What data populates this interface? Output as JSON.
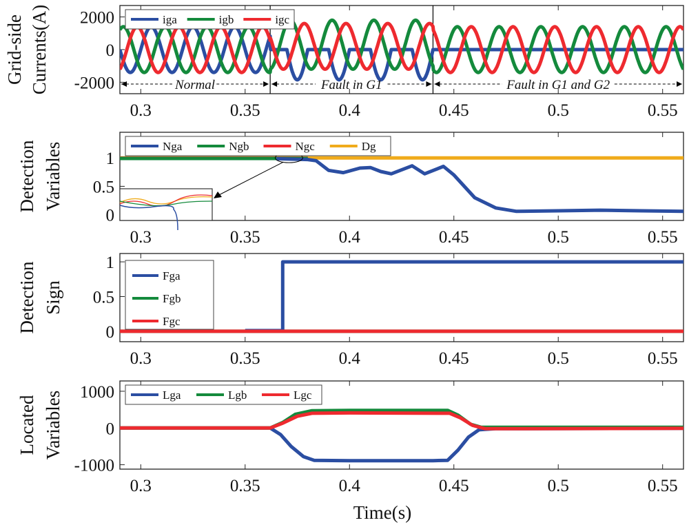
{
  "colors": {
    "blue": "#2b4ea2",
    "green": "#148a3c",
    "red": "#ee2a2f",
    "orange": "#f0ab1b",
    "axis": "#222222"
  },
  "chart_data": [
    {
      "type": "line",
      "ylabel": [
        "Grid-side",
        "Currents(A)"
      ],
      "xlim": [
        0.29,
        0.56
      ],
      "ylim": [
        -2700,
        2700
      ],
      "xticks": [
        0.3,
        0.35,
        0.4,
        0.45,
        0.5,
        0.55
      ],
      "xticklabels": [
        "0.3",
        "0.35",
        "0.4",
        "0.45",
        "0.5",
        "0.55"
      ],
      "yticks": [
        2000,
        0,
        -2000
      ],
      "yticklabels": [
        "2000",
        "0",
        "-2000"
      ],
      "legend": {
        "placement": "top-left",
        "entries": [
          "iga",
          "igb",
          "igc"
        ]
      },
      "series": [
        {
          "name": "iga",
          "color": "blue",
          "form": "sinusoid",
          "freq_hz": 50,
          "phase_deg": 0,
          "segments": [
            {
              "t0": 0.29,
              "t1": 0.362,
              "amplitude": 1400,
              "offset": 0,
              "clip": null
            },
            {
              "t0": 0.362,
              "t1": 0.44,
              "amplitude": 1850,
              "offset": 0,
              "clip": [
                -2700,
                0
              ]
            },
            {
              "t0": 0.44,
              "t1": 0.56,
              "amplitude": 0,
              "offset": 0,
              "clip": null
            }
          ]
        },
        {
          "name": "igb",
          "color": "green",
          "form": "sinusoid",
          "freq_hz": 50,
          "phase_deg": -120,
          "segments": [
            {
              "t0": 0.29,
              "t1": 0.362,
              "amplitude": 1400,
              "offset": 0,
              "clip": null
            },
            {
              "t0": 0.362,
              "t1": 0.44,
              "amplitude": 1500,
              "offset": 300,
              "clip": null
            },
            {
              "t0": 0.44,
              "t1": 0.56,
              "amplitude": 1400,
              "offset": 0,
              "clip": null
            }
          ]
        },
        {
          "name": "igc",
          "color": "red",
          "form": "sinusoid",
          "freq_hz": 50,
          "phase_deg": 120,
          "segments": [
            {
              "t0": 0.29,
              "t1": 0.362,
              "amplitude": 1400,
              "offset": 0,
              "clip": null
            },
            {
              "t0": 0.362,
              "t1": 0.44,
              "amplitude": 1400,
              "offset": 200,
              "clip": null
            },
            {
              "t0": 0.44,
              "t1": 0.56,
              "amplitude": 1400,
              "offset": 0,
              "clip": null
            }
          ]
        }
      ],
      "vlines": [
        0.362,
        0.44
      ],
      "annotations": [
        {
          "text": "Normal",
          "from": 0.29,
          "to": 0.362
        },
        {
          "text": "Fault in G1",
          "from": 0.362,
          "to": 0.44
        },
        {
          "text": "Fault in G1 and G2",
          "from": 0.44,
          "to": 0.56
        }
      ]
    },
    {
      "type": "line",
      "ylabel": [
        "Detection",
        "Variables"
      ],
      "xlim": [
        0.29,
        0.56
      ],
      "ylim": [
        -0.1,
        1.45
      ],
      "xticks": [
        0.3,
        0.35,
        0.4,
        0.45,
        0.5,
        0.55
      ],
      "xticklabels": [
        "0.3",
        "0.35",
        "0.4",
        "0.45",
        "0.5",
        "0.55"
      ],
      "yticks": [
        1,
        0.5,
        0
      ],
      "yticklabels": [
        "1",
        "0.5",
        "0"
      ],
      "legend": {
        "placement": "top-left",
        "entries": [
          "Nga",
          "Ngb",
          "Ngc",
          "Dg"
        ]
      },
      "series": [
        {
          "name": "Dg",
          "color": "orange",
          "points": [
            [
              0.29,
              1.0
            ],
            [
              0.56,
              1.0
            ]
          ]
        },
        {
          "name": "Ngc",
          "color": "red",
          "points": [
            [
              0.29,
              0.995
            ],
            [
              0.38,
              0.995
            ]
          ]
        },
        {
          "name": "Ngb",
          "color": "green",
          "points": [
            [
              0.29,
              0.99
            ],
            [
              0.38,
              0.99
            ]
          ]
        },
        {
          "name": "Nga",
          "color": "blue",
          "points": [
            [
              0.365,
              0.985
            ],
            [
              0.38,
              0.97
            ],
            [
              0.384,
              0.95
            ],
            [
              0.39,
              0.78
            ],
            [
              0.397,
              0.74
            ],
            [
              0.405,
              0.82
            ],
            [
              0.41,
              0.83
            ],
            [
              0.415,
              0.76
            ],
            [
              0.42,
              0.72
            ],
            [
              0.43,
              0.86
            ],
            [
              0.436,
              0.72
            ],
            [
              0.445,
              0.85
            ],
            [
              0.45,
              0.7
            ],
            [
              0.46,
              0.3
            ],
            [
              0.47,
              0.12
            ],
            [
              0.48,
              0.06
            ],
            [
              0.5,
              0.07
            ],
            [
              0.52,
              0.08
            ],
            [
              0.54,
              0.07
            ],
            [
              0.56,
              0.06
            ]
          ]
        }
      ],
      "inset": {
        "type": "zoom",
        "region_x": [
          0.365,
          0.375
        ],
        "region_y": [
          0.97,
          1.02
        ]
      }
    },
    {
      "type": "line",
      "ylabel": [
        "Detection",
        "Sign"
      ],
      "xlim": [
        0.29,
        0.56
      ],
      "ylim": [
        -0.15,
        1.12
      ],
      "xticks": [
        0.3,
        0.35,
        0.4,
        0.45,
        0.5,
        0.55
      ],
      "xticklabels": [
        "0.3",
        "0.35",
        "0.4",
        "0.45",
        "0.5",
        "0.55"
      ],
      "yticks": [
        1,
        0.5,
        0
      ],
      "yticklabels": [
        "1",
        "0.5",
        "0"
      ],
      "legend": {
        "placement": "top-left",
        "entries": [
          "Fga",
          "Fgb",
          "Fgc"
        ]
      },
      "series": [
        {
          "name": "Fgb",
          "color": "green",
          "points": [
            [
              0.29,
              0
            ],
            [
              0.56,
              0
            ]
          ]
        },
        {
          "name": "Fga",
          "color": "blue",
          "points": [
            [
              0.35,
              0.01
            ],
            [
              0.368,
              0.01
            ],
            [
              0.368,
              1
            ],
            [
              0.56,
              1
            ]
          ]
        },
        {
          "name": "Fgc",
          "color": "red",
          "points": [
            [
              0.29,
              0
            ],
            [
              0.56,
              0
            ]
          ]
        }
      ]
    },
    {
      "type": "line",
      "ylabel": [
        "Located",
        "Variables"
      ],
      "xlim": [
        0.29,
        0.56
      ],
      "ylim": [
        -1120,
        1280
      ],
      "xticks": [
        0.3,
        0.35,
        0.4,
        0.45,
        0.5,
        0.55
      ],
      "xticklabels": [
        "0.3",
        "0.35",
        "0.4",
        "0.45",
        "0.5",
        "0.55"
      ],
      "yticks": [
        1000,
        0,
        -1000
      ],
      "yticklabels": [
        "1000",
        "0",
        "-1000"
      ],
      "legend": {
        "placement": "top-left",
        "entries": [
          "Lga",
          "Lgb",
          "Lgc"
        ]
      },
      "xlabel": "Time(s)",
      "series": [
        {
          "name": "Lga",
          "color": "blue",
          "points": [
            [
              0.29,
              0
            ],
            [
              0.362,
              0
            ],
            [
              0.367,
              -180
            ],
            [
              0.372,
              -500
            ],
            [
              0.378,
              -780
            ],
            [
              0.383,
              -880
            ],
            [
              0.4,
              -890
            ],
            [
              0.44,
              -890
            ],
            [
              0.447,
              -880
            ],
            [
              0.452,
              -600
            ],
            [
              0.457,
              -250
            ],
            [
              0.462,
              -50
            ],
            [
              0.47,
              -20
            ],
            [
              0.56,
              -10
            ]
          ]
        },
        {
          "name": "Lgb",
          "color": "green",
          "points": [
            [
              0.29,
              0
            ],
            [
              0.362,
              0
            ],
            [
              0.368,
              150
            ],
            [
              0.374,
              370
            ],
            [
              0.382,
              470
            ],
            [
              0.4,
              480
            ],
            [
              0.447,
              480
            ],
            [
              0.452,
              350
            ],
            [
              0.458,
              100
            ],
            [
              0.463,
              20
            ],
            [
              0.56,
              20
            ]
          ]
        },
        {
          "name": "Lgc",
          "color": "red",
          "points": [
            [
              0.29,
              0
            ],
            [
              0.362,
              0
            ],
            [
              0.368,
              130
            ],
            [
              0.375,
              320
            ],
            [
              0.382,
              400
            ],
            [
              0.4,
              410
            ],
            [
              0.448,
              400
            ],
            [
              0.453,
              280
            ],
            [
              0.459,
              70
            ],
            [
              0.465,
              -20
            ],
            [
              0.56,
              -10
            ]
          ]
        }
      ]
    }
  ]
}
